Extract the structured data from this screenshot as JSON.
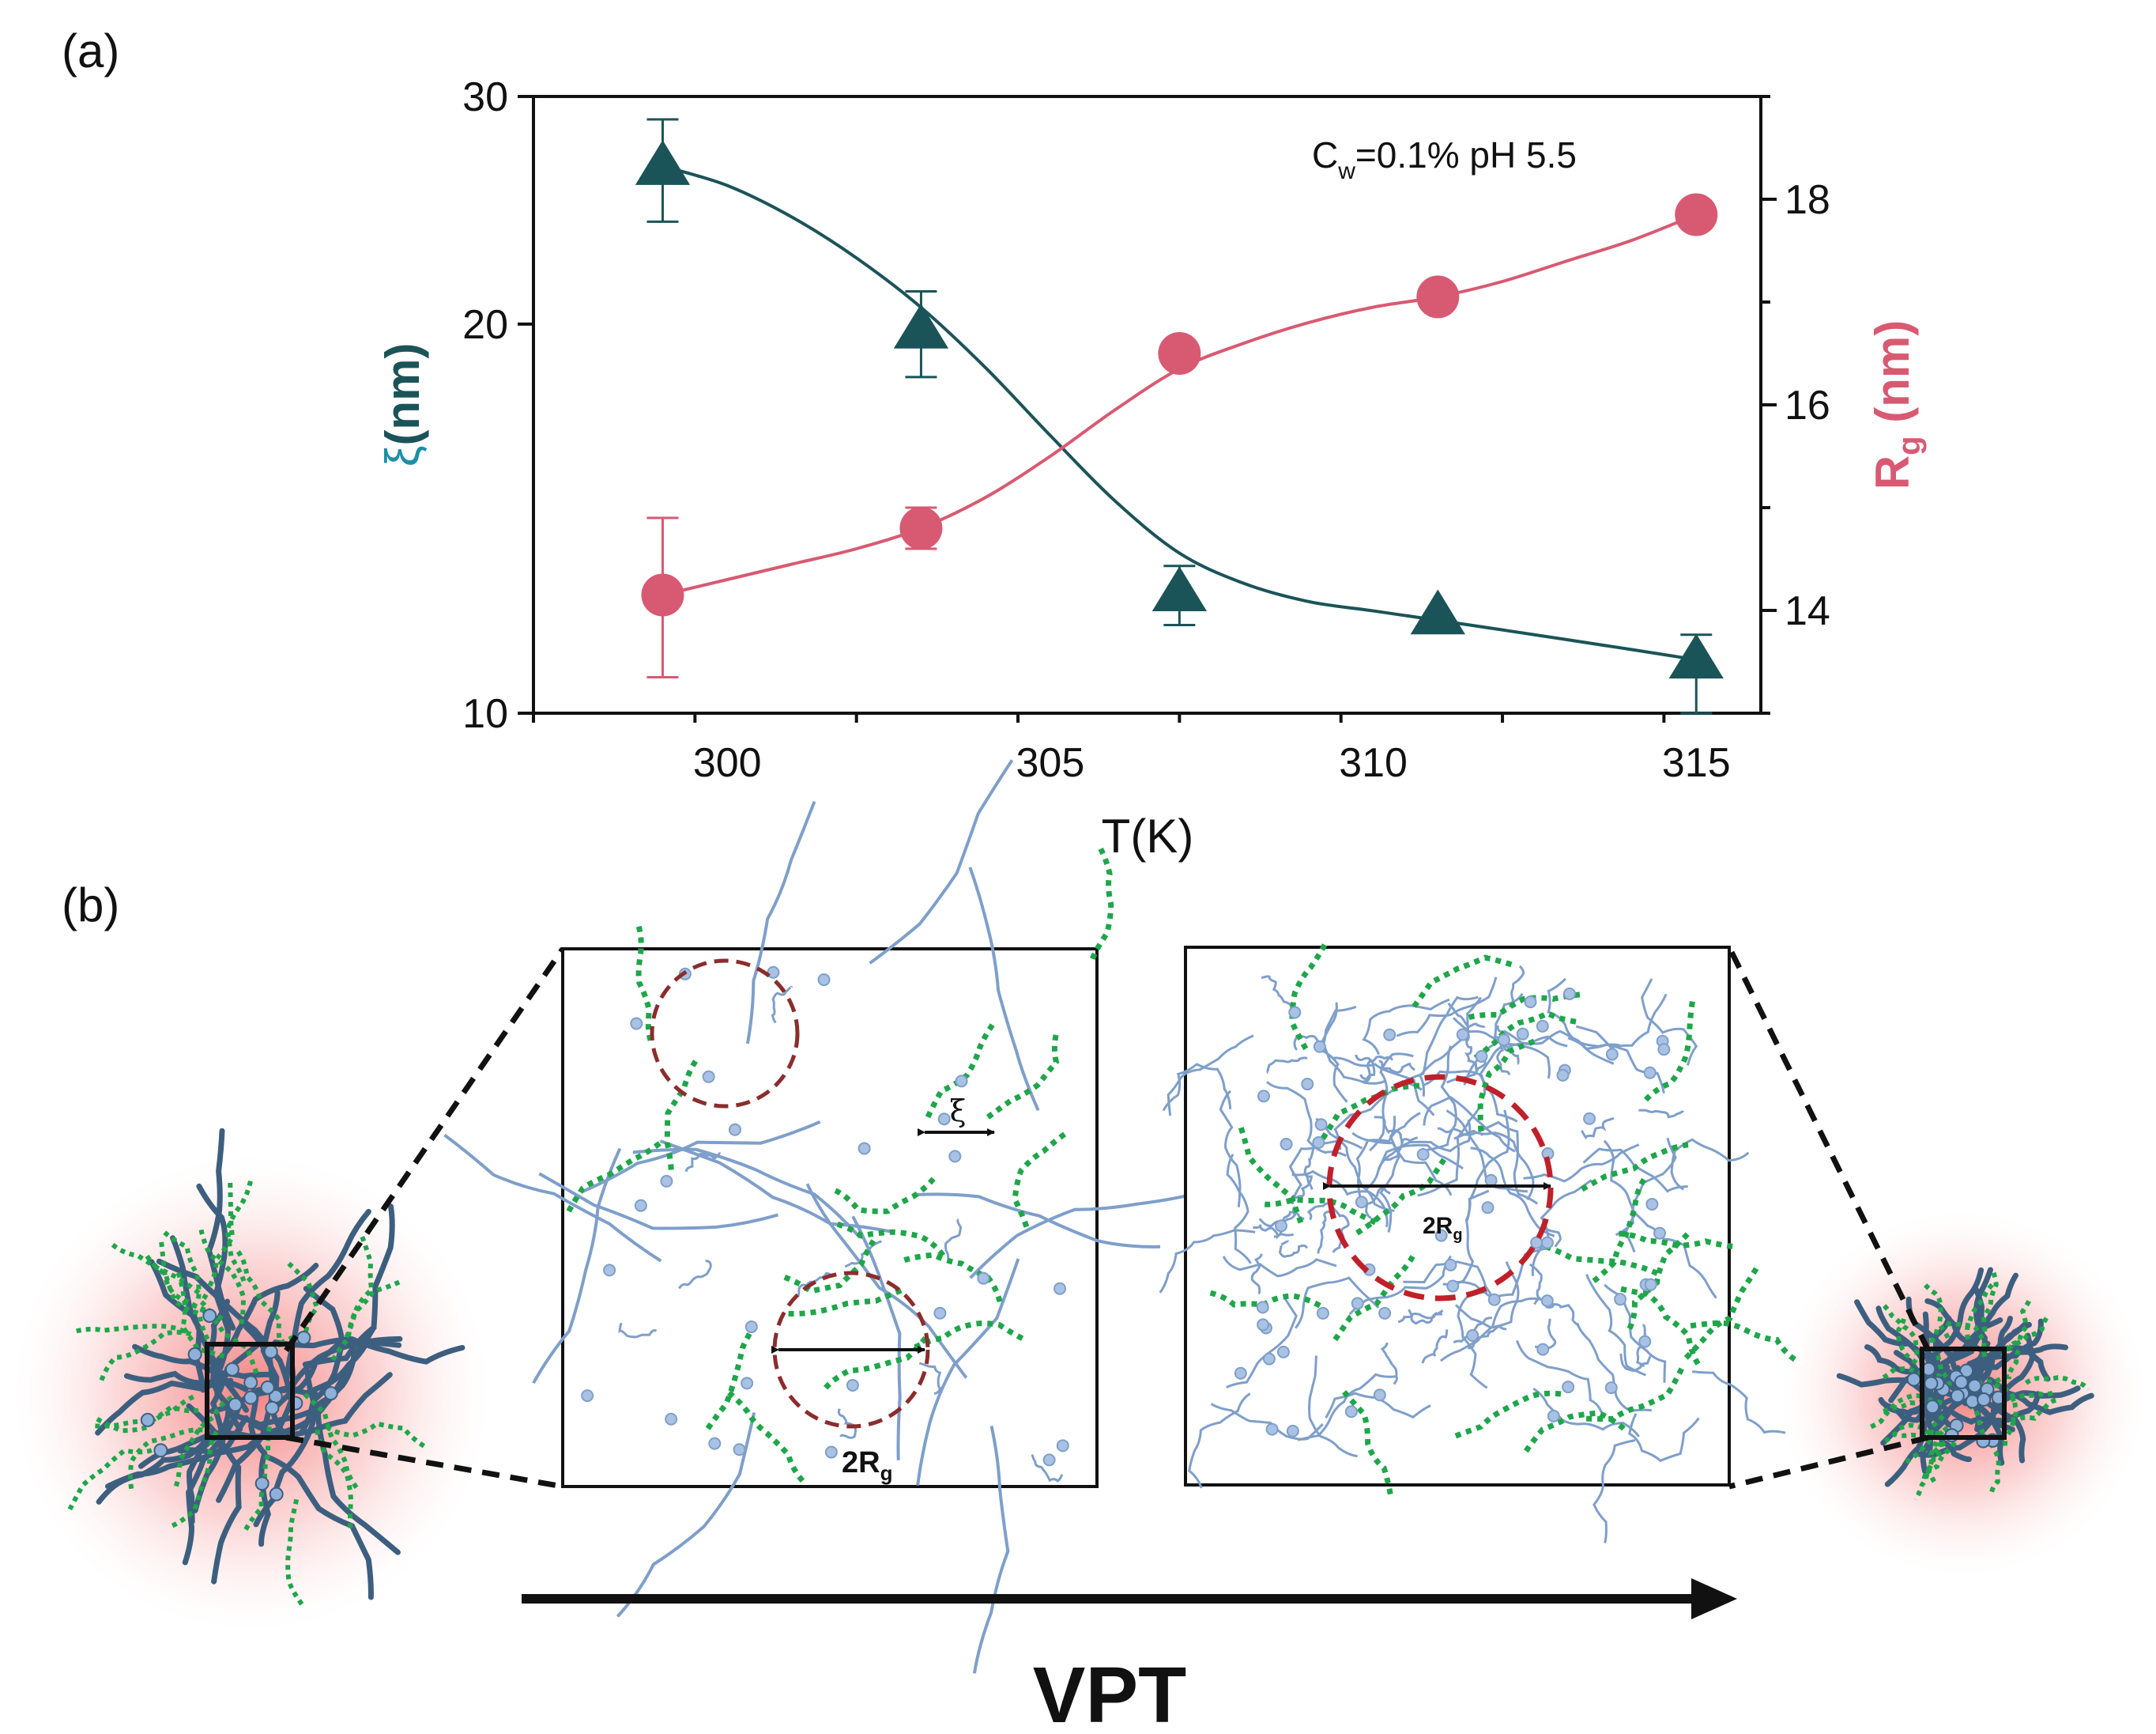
{
  "panel_a_label": "(a)",
  "panel_b_label": "(b)",
  "chart_data": {
    "type": "line",
    "annotation": {
      "c": "C",
      "sub": "w",
      "rest": "=0.1% pH 5.5"
    },
    "x": [
      299,
      303,
      307,
      311,
      315
    ],
    "xlabel": "T(K)",
    "xlim": [
      297,
      316
    ],
    "xticks": [
      300,
      305,
      310,
      315
    ],
    "ylabel_left": "ξ(nm)",
    "ylabel_left_parts": {
      "symbol": "ξ",
      "rest": "(nm)"
    },
    "ylim_left": [
      10,
      30
    ],
    "yscale_left": "log",
    "yticks_left": [
      10,
      20,
      30
    ],
    "ylabel_right": "Rg (nm)",
    "ylabel_right_parts": {
      "main": "R",
      "sub": "g",
      "rest": " (nm)"
    },
    "ylim_right": [
      13,
      19
    ],
    "yticks_right": [
      14,
      16,
      18
    ],
    "grid": false,
    "series": [
      {
        "axis": "left",
        "marker": "triangle",
        "color": "#1b5458",
        "values": [
          26.5,
          19.8,
          12.4,
          11.9,
          11.0
        ],
        "err_low": [
          24.0,
          18.2,
          11.7,
          null,
          10.0
        ],
        "err_high": [
          28.8,
          21.2,
          13.0,
          null,
          11.5
        ],
        "fit": [
          [
            299,
            26.5
          ],
          [
            300,
            25.6
          ],
          [
            301,
            24.2
          ],
          [
            302,
            22.5
          ],
          [
            303,
            20.6
          ],
          [
            304,
            18.5
          ],
          [
            305,
            16.4
          ],
          [
            306,
            14.6
          ],
          [
            307,
            13.3
          ],
          [
            308,
            12.6
          ],
          [
            309,
            12.2
          ],
          [
            310,
            12.0
          ],
          [
            311,
            11.8
          ],
          [
            312,
            11.6
          ],
          [
            313,
            11.4
          ],
          [
            314,
            11.2
          ],
          [
            315,
            11.0
          ]
        ]
      },
      {
        "axis": "right",
        "marker": "circle",
        "color": "#d85a72",
        "values": [
          14.15,
          14.8,
          16.5,
          17.05,
          17.85
        ],
        "err_low": [
          13.35,
          14.6,
          null,
          null,
          null
        ],
        "err_high": [
          14.9,
          15.0,
          null,
          null,
          null
        ],
        "fit": [
          [
            299,
            14.15
          ],
          [
            300,
            14.3
          ],
          [
            301,
            14.45
          ],
          [
            302,
            14.6
          ],
          [
            303,
            14.8
          ],
          [
            304,
            15.1
          ],
          [
            305,
            15.5
          ],
          [
            306,
            15.95
          ],
          [
            307,
            16.35
          ],
          [
            308,
            16.6
          ],
          [
            309,
            16.8
          ],
          [
            310,
            16.95
          ],
          [
            311,
            17.05
          ],
          [
            312,
            17.2
          ],
          [
            313,
            17.4
          ],
          [
            314,
            17.6
          ],
          [
            315,
            17.85
          ]
        ]
      }
    ]
  },
  "diagram": {
    "label_2rg": {
      "main": "2R",
      "sub": "g"
    },
    "label_xi": "ξ",
    "vpt": "VPT",
    "colors": {
      "network": "#3d5f7f",
      "network_light": "#7f9fca",
      "dangling": "#1fa64a",
      "glow": "#f48a8a",
      "circle_left": "#8b2d2d",
      "circle_right": "#c0202a"
    }
  }
}
